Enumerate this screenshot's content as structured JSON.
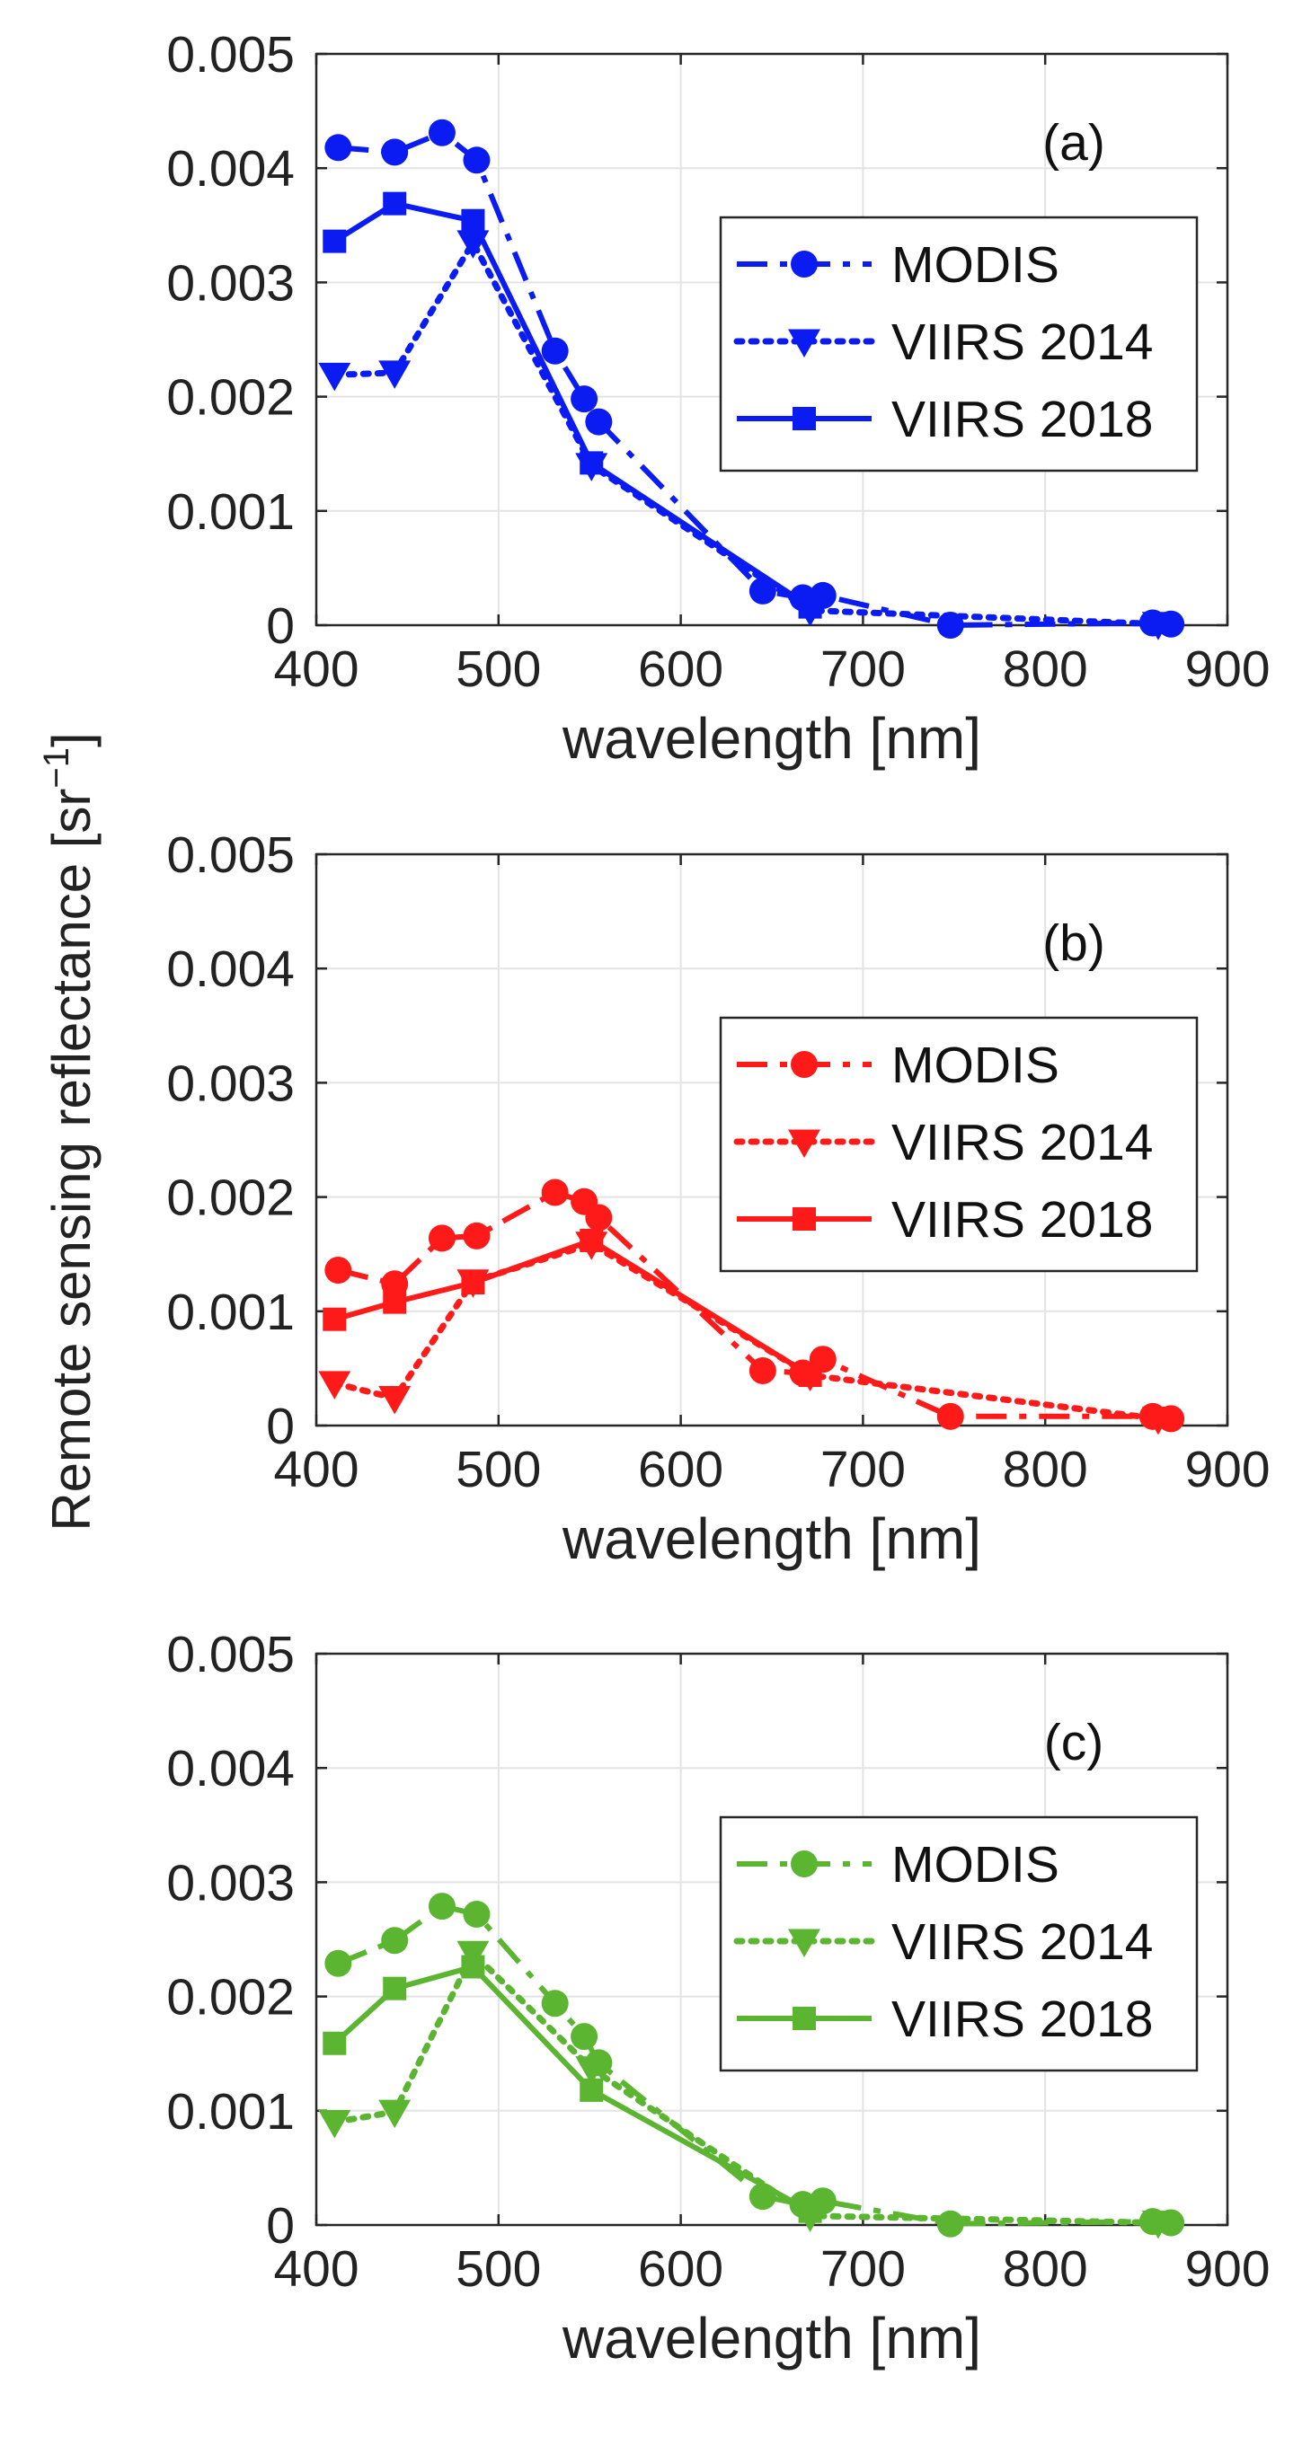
{
  "figure": {
    "ylabel": "Remote sensing reflectance [sr",
    "ylabel_exp": "−1",
    "ylabel_close": "]"
  },
  "chart_data": [
    {
      "type": "line",
      "panel": "(a)",
      "color": "#0a1cf2",
      "xlabel": "wavelength [nm]",
      "xlim": [
        400,
        900
      ],
      "ylim": [
        0,
        0.005
      ],
      "xticks": [
        "400",
        "500",
        "600",
        "700",
        "800",
        "900"
      ],
      "yticks": [
        "0",
        "0.001",
        "0.002",
        "0.003",
        "0.004",
        "0.005"
      ],
      "grid": true,
      "legend": "right",
      "series": [
        {
          "name": "MODIS",
          "style": "dashdot",
          "marker": "circle",
          "x": [
            412,
            443,
            469,
            488,
            531,
            547,
            555,
            645,
            667,
            678,
            748,
            859,
            869
          ],
          "y": [
            0.00418,
            0.00414,
            0.00431,
            0.00407,
            0.0024,
            0.00198,
            0.00178,
            0.0003,
            0.00024,
            0.00026,
            0.0,
            2e-05,
            1e-05
          ]
        },
        {
          "name": "VIIRS 2014",
          "style": "dotted",
          "marker": "triangle",
          "x": [
            410,
            443,
            486,
            551,
            671,
            862
          ],
          "y": [
            0.00219,
            0.00221,
            0.00335,
            0.0014,
            0.00013,
            1e-05
          ]
        },
        {
          "name": "VIIRS 2018",
          "style": "solid",
          "marker": "square",
          "x": [
            410,
            443,
            486,
            551,
            671
          ],
          "y": [
            0.00336,
            0.00369,
            0.00354,
            0.00142,
            0.00016
          ]
        }
      ]
    },
    {
      "type": "line",
      "panel": "(b)",
      "color": "#ff1a1a",
      "xlabel": "wavelength [nm]",
      "xlim": [
        400,
        900
      ],
      "ylim": [
        0,
        0.005
      ],
      "xticks": [
        "400",
        "500",
        "600",
        "700",
        "800",
        "900"
      ],
      "yticks": [
        "0",
        "0.001",
        "0.002",
        "0.003",
        "0.004",
        "0.005"
      ],
      "grid": true,
      "legend": "right",
      "series": [
        {
          "name": "MODIS",
          "style": "dashdot",
          "marker": "circle",
          "x": [
            412,
            443,
            469,
            488,
            531,
            547,
            555,
            645,
            667,
            678,
            748,
            859,
            869
          ],
          "y": [
            0.00136,
            0.00124,
            0.00164,
            0.00166,
            0.00204,
            0.00196,
            0.00182,
            0.00048,
            0.00046,
            0.00058,
            8e-05,
            8e-05,
            6e-05
          ]
        },
        {
          "name": "VIIRS 2014",
          "style": "dotted",
          "marker": "triangle",
          "x": [
            410,
            443,
            486,
            551,
            671,
            862
          ],
          "y": [
            0.00037,
            0.00024,
            0.00126,
            0.00159,
            0.00044,
            6e-05
          ]
        },
        {
          "name": "VIIRS 2018",
          "style": "solid",
          "marker": "square",
          "x": [
            410,
            443,
            486,
            551,
            671
          ],
          "y": [
            0.00093,
            0.00108,
            0.00125,
            0.00162,
            0.00044
          ]
        }
      ]
    },
    {
      "type": "line",
      "panel": "(c)",
      "color": "#5bb531",
      "xlabel": "wavelength [nm]",
      "xlim": [
        400,
        900
      ],
      "ylim": [
        0,
        0.005
      ],
      "xticks": [
        "400",
        "500",
        "600",
        "700",
        "800",
        "900"
      ],
      "yticks": [
        "0",
        "0.001",
        "0.002",
        "0.003",
        "0.004",
        "0.005"
      ],
      "grid": true,
      "legend": "right",
      "series": [
        {
          "name": "MODIS",
          "style": "dashdot",
          "marker": "circle",
          "x": [
            412,
            443,
            469,
            488,
            531,
            547,
            555,
            645,
            667,
            678,
            748,
            859,
            869
          ],
          "y": [
            0.00229,
            0.00249,
            0.00279,
            0.00272,
            0.00194,
            0.00165,
            0.00142,
            0.00025,
            0.00018,
            0.00021,
            1e-05,
            3e-05,
            2e-05
          ]
        },
        {
          "name": "VIIRS 2014",
          "style": "dotted",
          "marker": "triangle",
          "x": [
            410,
            443,
            486,
            551,
            671,
            862
          ],
          "y": [
            0.0009,
            0.00099,
            0.00238,
            0.00137,
            8e-05,
            2e-05
          ]
        },
        {
          "name": "VIIRS 2018",
          "style": "solid",
          "marker": "square",
          "x": [
            410,
            443,
            486,
            551,
            671
          ],
          "y": [
            0.00159,
            0.00207,
            0.00226,
            0.00118,
            0.00012
          ]
        }
      ]
    }
  ]
}
